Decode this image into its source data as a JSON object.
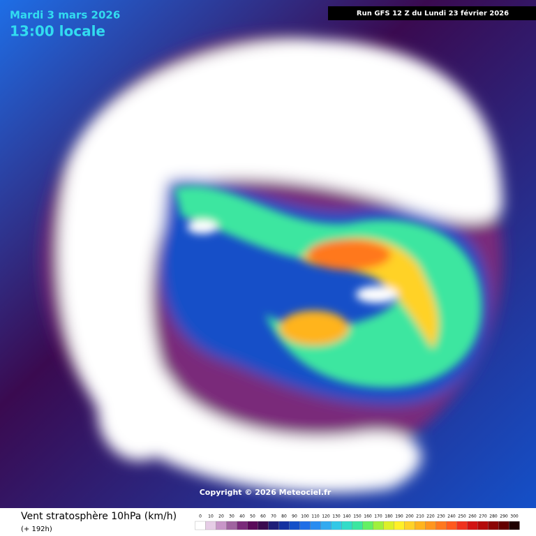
{
  "header": {
    "date": "Mardi 3 mars 2026",
    "time": "13:00 locale",
    "run": "Run GFS 12 Z du Lundi 23 février 2026"
  },
  "map": {
    "copyright": "Copyright © 2026 Meteociel.fr"
  },
  "legend": {
    "title": "Vent stratosphère 10hPa (km/h)",
    "subtitle": "(+ 192h)",
    "labels": [
      0,
      10,
      20,
      30,
      40,
      50,
      60,
      70,
      80,
      90,
      100,
      110,
      120,
      130,
      140,
      150,
      160,
      170,
      180,
      190,
      200,
      210,
      220,
      230,
      240,
      250,
      260,
      270,
      280,
      290,
      300
    ],
    "colors": [
      "#ffffff",
      "#e6cde6",
      "#c896c8",
      "#a064a0",
      "#7a2a7a",
      "#5a0a5a",
      "#3a0a50",
      "#1e1e78",
      "#1432a0",
      "#1450c8",
      "#1e6ee6",
      "#288cf0",
      "#32aaf0",
      "#32c8e6",
      "#32dcc8",
      "#3ce6a0",
      "#64f064",
      "#a0f03c",
      "#dcf028",
      "#fff028",
      "#ffd228",
      "#ffb41e",
      "#ff961e",
      "#ff781e",
      "#ff5a1e",
      "#f0321e",
      "#d21414",
      "#b40a0a",
      "#8c0505",
      "#640000",
      "#1e0000"
    ]
  }
}
